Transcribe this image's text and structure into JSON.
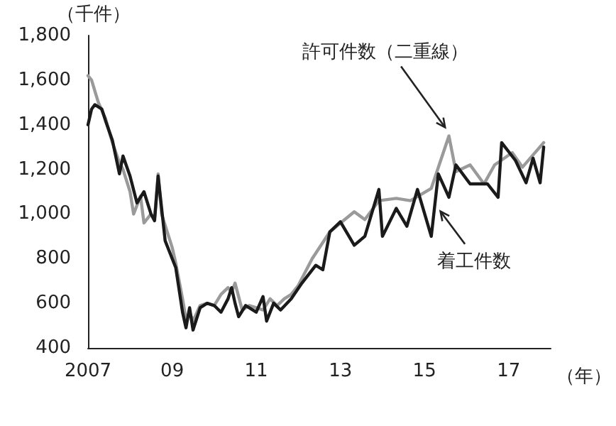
{
  "chart_data": {
    "type": "line",
    "ylabel": "（千件）",
    "xlabel": "（年）",
    "xlim": [
      "2007-01",
      "2018-01"
    ],
    "xticks": [
      {
        "value": "2007",
        "label": "2007"
      },
      {
        "value": "2009",
        "label": "09"
      },
      {
        "value": "2011",
        "label": "11"
      },
      {
        "value": "2013",
        "label": "13"
      },
      {
        "value": "2015",
        "label": "15"
      },
      {
        "value": "2017",
        "label": "17"
      }
    ],
    "ylim": [
      400,
      1800
    ],
    "yticks": [
      400,
      600,
      800,
      {
        "value": 1000,
        "label": "1,000"
      },
      {
        "value": 1200,
        "label": "1,200"
      },
      {
        "value": 1400,
        "label": "1,400"
      },
      {
        "value": 1600,
        "label": "1,600"
      },
      {
        "value": 1800,
        "label": "1,800"
      }
    ],
    "grid": false,
    "marker": "none",
    "line_style": "solid",
    "series": [
      {
        "color": "#9a9a9a",
        "x": [
          "2007-01",
          "2007-02",
          "2007-04",
          "2007-06",
          "2007-08",
          "2007-10",
          "2007-11",
          "2008-01",
          "2008-02",
          "2008-04",
          "2008-05",
          "2008-07",
          "2008-08",
          "2008-09",
          "2008-10",
          "2009-01",
          "2009-02",
          "2009-04",
          "2009-05",
          "2009-06",
          "2009-07",
          "2009-09",
          "2009-11",
          "2010-01",
          "2010-03",
          "2010-05",
          "2010-06",
          "2010-07",
          "2010-09",
          "2010-11",
          "2011-01",
          "2011-03",
          "2011-05",
          "2011-07",
          "2011-09",
          "2011-11",
          "2012-01",
          "2012-05",
          "2012-10",
          "2013-05",
          "2013-08",
          "2013-12",
          "2014-05",
          "2014-09",
          "2015-03",
          "2015-08",
          "2015-10",
          "2016-02",
          "2016-06",
          "2016-09",
          "2017-02",
          "2017-05",
          "2017-08",
          "2017-11"
        ],
        "values": [
          1620,
          1600,
          1500,
          1430,
          1320,
          1230,
          1200,
          1100,
          1000,
          1080,
          960,
          1000,
          980,
          1180,
          1000,
          850,
          780,
          620,
          530,
          560,
          520,
          590,
          600,
          590,
          640,
          670,
          650,
          690,
          570,
          590,
          580,
          570,
          620,
          590,
          620,
          640,
          680,
          800,
          920,
          1010,
          975,
          1060,
          1070,
          1060,
          1115,
          1350,
          1190,
          1220,
          1135,
          1220,
          1275,
          1210,
          1265,
          1320
        ]
      },
      {
        "color": "#1a1a1a",
        "x": [
          "2007-01",
          "2007-02",
          "2007-03",
          "2007-05",
          "2007-06",
          "2007-08",
          "2007-10",
          "2007-11",
          "2008-01",
          "2008-03",
          "2008-05",
          "2008-07",
          "2008-08",
          "2008-09",
          "2008-11",
          "2009-01",
          "2009-02",
          "2009-04",
          "2009-05",
          "2009-06",
          "2009-07",
          "2009-09",
          "2009-11",
          "2010-01",
          "2010-03",
          "2010-05",
          "2010-06",
          "2010-07",
          "2010-08",
          "2010-10",
          "2011-01",
          "2011-03",
          "2011-04",
          "2011-06",
          "2011-08",
          "2011-11",
          "2012-02",
          "2012-06",
          "2012-08",
          "2012-10",
          "2013-01",
          "2013-05",
          "2013-08",
          "2013-12",
          "2014-01",
          "2014-05",
          "2014-08",
          "2014-11",
          "2015-03",
          "2015-05",
          "2015-08",
          "2015-10",
          "2016-02",
          "2016-07",
          "2016-10",
          "2016-11",
          "2017-03",
          "2017-06",
          "2017-08",
          "2017-10",
          "2017-11"
        ],
        "values": [
          1400,
          1470,
          1490,
          1470,
          1420,
          1330,
          1180,
          1260,
          1170,
          1050,
          1100,
          1000,
          970,
          1170,
          880,
          800,
          760,
          560,
          490,
          580,
          480,
          580,
          600,
          590,
          560,
          620,
          670,
          600,
          540,
          590,
          560,
          630,
          520,
          600,
          570,
          620,
          690,
          770,
          750,
          920,
          965,
          860,
          900,
          1110,
          900,
          1025,
          945,
          1110,
          900,
          1180,
          1075,
          1220,
          1135,
          1135,
          1075,
          1320,
          1240,
          1140,
          1250,
          1140,
          1300
        ]
      }
    ],
    "annotations": [
      {
        "text": "許可件数（二重線）",
        "x": "2015-08",
        "y": 1350
      },
      {
        "text": "着工件数",
        "x": "2015-05",
        "y": 1050
      }
    ]
  }
}
